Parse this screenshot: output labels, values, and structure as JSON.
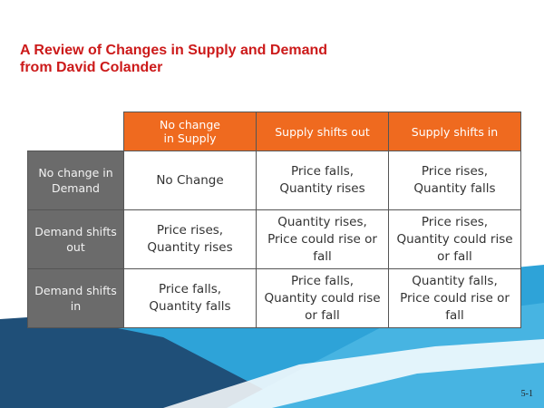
{
  "slide": {
    "title_lines": [
      "A Review of Changes in Supply and Demand",
      "from David Colander"
    ],
    "page_number": "5-1",
    "colors": {
      "title": "#cc1a1a",
      "header_orange": "#ef6a1f",
      "row_header_gray": "#6b6b6b",
      "bg_blue": "#2ea3d8",
      "bg_dark_blue": "#1f4f78"
    }
  },
  "table": {
    "column_headers": [
      [
        "No change",
        "in Supply"
      ],
      [
        "Supply shifts out"
      ],
      [
        "Supply shifts in"
      ]
    ],
    "rows": [
      {
        "header": [
          "No change in",
          "Demand"
        ],
        "cells": [
          [
            "No Change"
          ],
          [
            "Price falls,",
            "Quantity rises"
          ],
          [
            "Price rises,",
            "Quantity falls"
          ]
        ]
      },
      {
        "header": [
          "Demand shifts",
          "out"
        ],
        "cells": [
          [
            "Price rises,",
            "Quantity rises"
          ],
          [
            "Quantity rises,",
            "Price could rise or",
            "fall"
          ],
          [
            "Price rises,",
            "Quantity could rise",
            "or fall"
          ]
        ]
      },
      {
        "header": [
          "Demand shifts",
          "in"
        ],
        "cells": [
          [
            "Price falls,",
            "Quantity falls"
          ],
          [
            "Price falls,",
            "Quantity could rise",
            "or fall"
          ],
          [
            "Quantity falls,",
            "Price could rise or",
            "fall"
          ]
        ]
      }
    ]
  }
}
